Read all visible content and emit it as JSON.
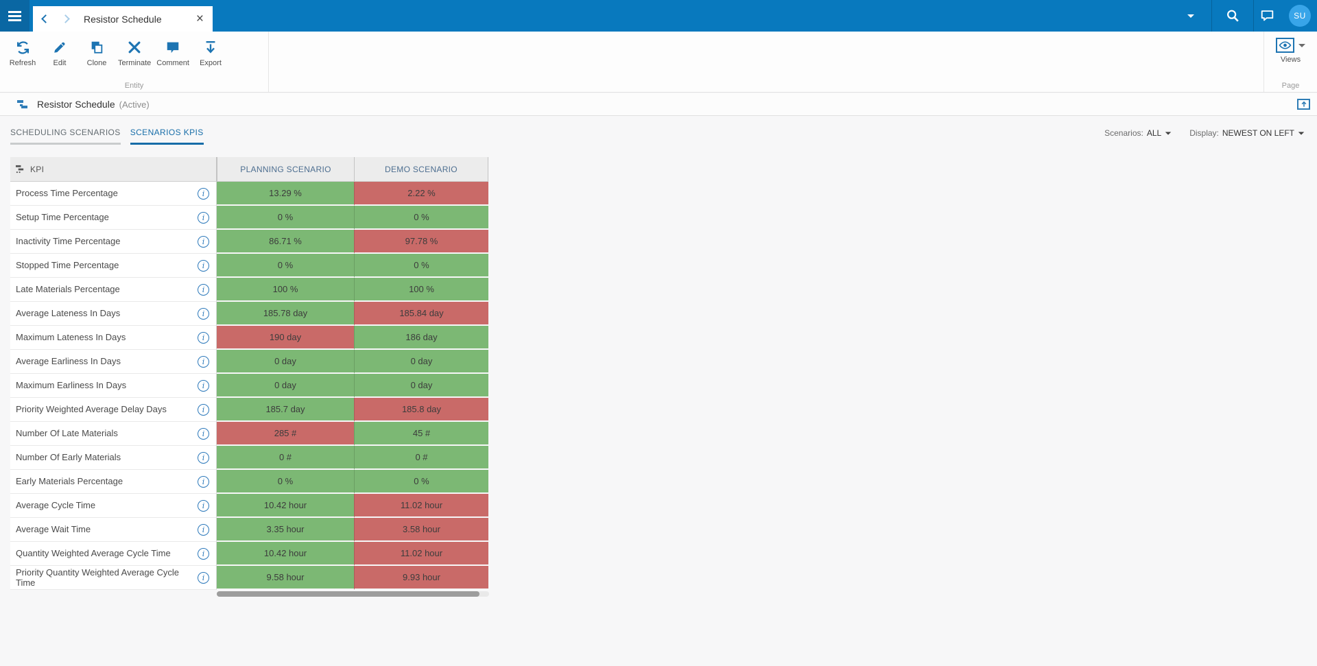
{
  "colors": {
    "good": "#7cb874",
    "bad": "#c96a68",
    "topbar": "#0879be",
    "accent": "#1d74b2"
  },
  "topbar": {
    "tab_title": "Resistor Schedule",
    "avatar_initials": "SU"
  },
  "toolbar": {
    "group_label": "Entity",
    "buttons": [
      {
        "label": "Refresh",
        "icon": "refresh-icon"
      },
      {
        "label": "Edit",
        "icon": "edit-icon"
      },
      {
        "label": "Clone",
        "icon": "clone-icon"
      },
      {
        "label": "Terminate",
        "icon": "terminate-icon"
      },
      {
        "label": "Comment",
        "icon": "comment-icon"
      },
      {
        "label": "Export",
        "icon": "export-icon"
      }
    ],
    "views": {
      "label": "Views",
      "group_label": "Page"
    }
  },
  "entity_header": {
    "title": "Resistor Schedule",
    "status": "(Active)"
  },
  "tabs": [
    {
      "label": "SCHEDULING SCENARIOS",
      "active": false
    },
    {
      "label": "SCENARIOS KPIS",
      "active": true
    }
  ],
  "filters": {
    "scenarios_label": "Scenarios:",
    "scenarios_value": "ALL",
    "display_label": "Display:",
    "display_value": "NEWEST ON LEFT"
  },
  "table": {
    "kpi_header": "KPI",
    "scenario_columns": [
      "PLANNING SCENARIO",
      "DEMO SCENARIO"
    ],
    "rows": [
      {
        "kpi": "Process Time Percentage",
        "values": [
          {
            "text": "13.29 %",
            "status": "good"
          },
          {
            "text": "2.22 %",
            "status": "bad"
          }
        ]
      },
      {
        "kpi": "Setup Time Percentage",
        "values": [
          {
            "text": "0 %",
            "status": "good"
          },
          {
            "text": "0 %",
            "status": "good"
          }
        ]
      },
      {
        "kpi": "Inactivity Time Percentage",
        "values": [
          {
            "text": "86.71 %",
            "status": "good"
          },
          {
            "text": "97.78 %",
            "status": "bad"
          }
        ]
      },
      {
        "kpi": "Stopped Time Percentage",
        "values": [
          {
            "text": "0 %",
            "status": "good"
          },
          {
            "text": "0 %",
            "status": "good"
          }
        ]
      },
      {
        "kpi": "Late Materials Percentage",
        "values": [
          {
            "text": "100 %",
            "status": "good"
          },
          {
            "text": "100 %",
            "status": "good"
          }
        ]
      },
      {
        "kpi": "Average Lateness In Days",
        "values": [
          {
            "text": "185.78 day",
            "status": "good"
          },
          {
            "text": "185.84 day",
            "status": "bad"
          }
        ]
      },
      {
        "kpi": "Maximum Lateness In Days",
        "values": [
          {
            "text": "190 day",
            "status": "bad"
          },
          {
            "text": "186 day",
            "status": "good"
          }
        ]
      },
      {
        "kpi": "Average Earliness In Days",
        "values": [
          {
            "text": "0 day",
            "status": "good"
          },
          {
            "text": "0 day",
            "status": "good"
          }
        ]
      },
      {
        "kpi": "Maximum Earliness In Days",
        "values": [
          {
            "text": "0 day",
            "status": "good"
          },
          {
            "text": "0 day",
            "status": "good"
          }
        ]
      },
      {
        "kpi": "Priority Weighted Average Delay Days",
        "values": [
          {
            "text": "185.7 day",
            "status": "good"
          },
          {
            "text": "185.8 day",
            "status": "bad"
          }
        ]
      },
      {
        "kpi": "Number Of Late Materials",
        "values": [
          {
            "text": "285 #",
            "status": "bad"
          },
          {
            "text": "45 #",
            "status": "good"
          }
        ]
      },
      {
        "kpi": "Number Of Early Materials",
        "values": [
          {
            "text": "0 #",
            "status": "good"
          },
          {
            "text": "0 #",
            "status": "good"
          }
        ]
      },
      {
        "kpi": "Early Materials Percentage",
        "values": [
          {
            "text": "0 %",
            "status": "good"
          },
          {
            "text": "0 %",
            "status": "good"
          }
        ]
      },
      {
        "kpi": "Average Cycle Time",
        "values": [
          {
            "text": "10.42 hour",
            "status": "good"
          },
          {
            "text": "11.02 hour",
            "status": "bad"
          }
        ]
      },
      {
        "kpi": "Average Wait Time",
        "values": [
          {
            "text": "3.35 hour",
            "status": "good"
          },
          {
            "text": "3.58 hour",
            "status": "bad"
          }
        ]
      },
      {
        "kpi": "Quantity Weighted Average Cycle Time",
        "values": [
          {
            "text": "10.42 hour",
            "status": "good"
          },
          {
            "text": "11.02 hour",
            "status": "bad"
          }
        ]
      },
      {
        "kpi": "Priority Quantity Weighted Average Cycle Time",
        "values": [
          {
            "text": "9.58 hour",
            "status": "good"
          },
          {
            "text": "9.93 hour",
            "status": "bad"
          }
        ]
      }
    ]
  }
}
